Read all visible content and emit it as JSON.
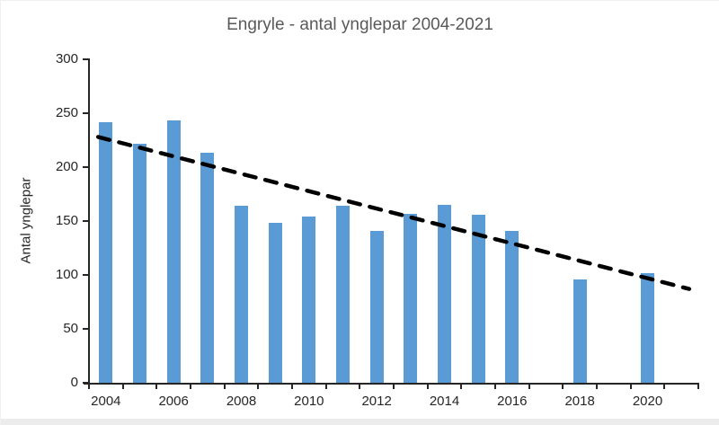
{
  "figure": {
    "title": "Engryle - antal ynglepar 2004-2021",
    "y_axis_title": "Antal ynglepar"
  },
  "colors": {
    "bar_fill": "#5B9BD5",
    "trendline": "#000000",
    "title_text": "#595959",
    "axis_text": "#262626",
    "axis_line": "#262626",
    "page_strip": "#ececec"
  },
  "chart_data": {
    "type": "bar",
    "title": "Engryle - antal ynglepar 2004-2021",
    "xlabel": "",
    "ylabel": "Antal ynglepar",
    "ylim": [
      0,
      300
    ],
    "y_ticks": [
      0,
      50,
      100,
      150,
      200,
      250,
      300
    ],
    "x_tick_labels": [
      "2004",
      "2006",
      "2008",
      "2010",
      "2012",
      "2014",
      "2016",
      "2018",
      "2020"
    ],
    "categories": [
      2004,
      2005,
      2006,
      2007,
      2008,
      2009,
      2010,
      2011,
      2012,
      2013,
      2014,
      2015,
      2016,
      2017,
      2018,
      2019,
      2020,
      2021
    ],
    "values": [
      242,
      222,
      243,
      213,
      164,
      148,
      154,
      164,
      141,
      157,
      165,
      156,
      141,
      null,
      96,
      null,
      102,
      null
    ],
    "grid": false,
    "legend": null,
    "trendline": {
      "style": "dashed",
      "color": "#000000",
      "start_value": 228,
      "end_value": 87,
      "start_frac": 0.015,
      "end_frac": 0.985
    }
  }
}
